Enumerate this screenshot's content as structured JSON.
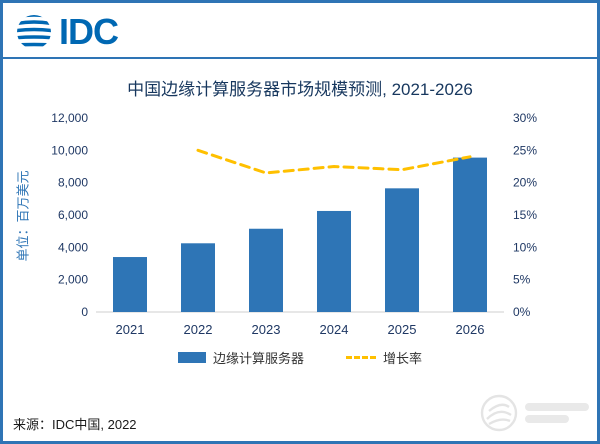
{
  "page": {
    "logo_text": "IDC",
    "source": "来源：IDC中国, 2022"
  },
  "colors": {
    "bar": "#2E75B6",
    "line": "#FFC000",
    "accent": "#0068B3",
    "axis_text": "#1F3864",
    "title_text": "#17375E"
  },
  "chart_data": {
    "type": "bar",
    "title": "中国边缘计算服务器市场规模预测, 2021-2026",
    "categories": [
      "2021",
      "2022",
      "2023",
      "2024",
      "2025",
      "2026"
    ],
    "series": [
      {
        "name": "边缘计算服务器",
        "type": "bar",
        "axis": "left",
        "values": [
          3400,
          4250,
          5150,
          6250,
          7650,
          9550
        ]
      },
      {
        "name": "增长率",
        "type": "line",
        "axis": "right",
        "values": [
          null,
          25,
          21.5,
          22.5,
          22,
          24
        ]
      }
    ],
    "left_axis": {
      "label": "单位：百万美元",
      "min": 0,
      "max": 12000,
      "step": 2000,
      "tick_format": "thousands"
    },
    "right_axis": {
      "min": 0,
      "max": 30,
      "step": 5,
      "tick_format": "percent"
    },
    "legend_position": "bottom",
    "grid": false
  }
}
